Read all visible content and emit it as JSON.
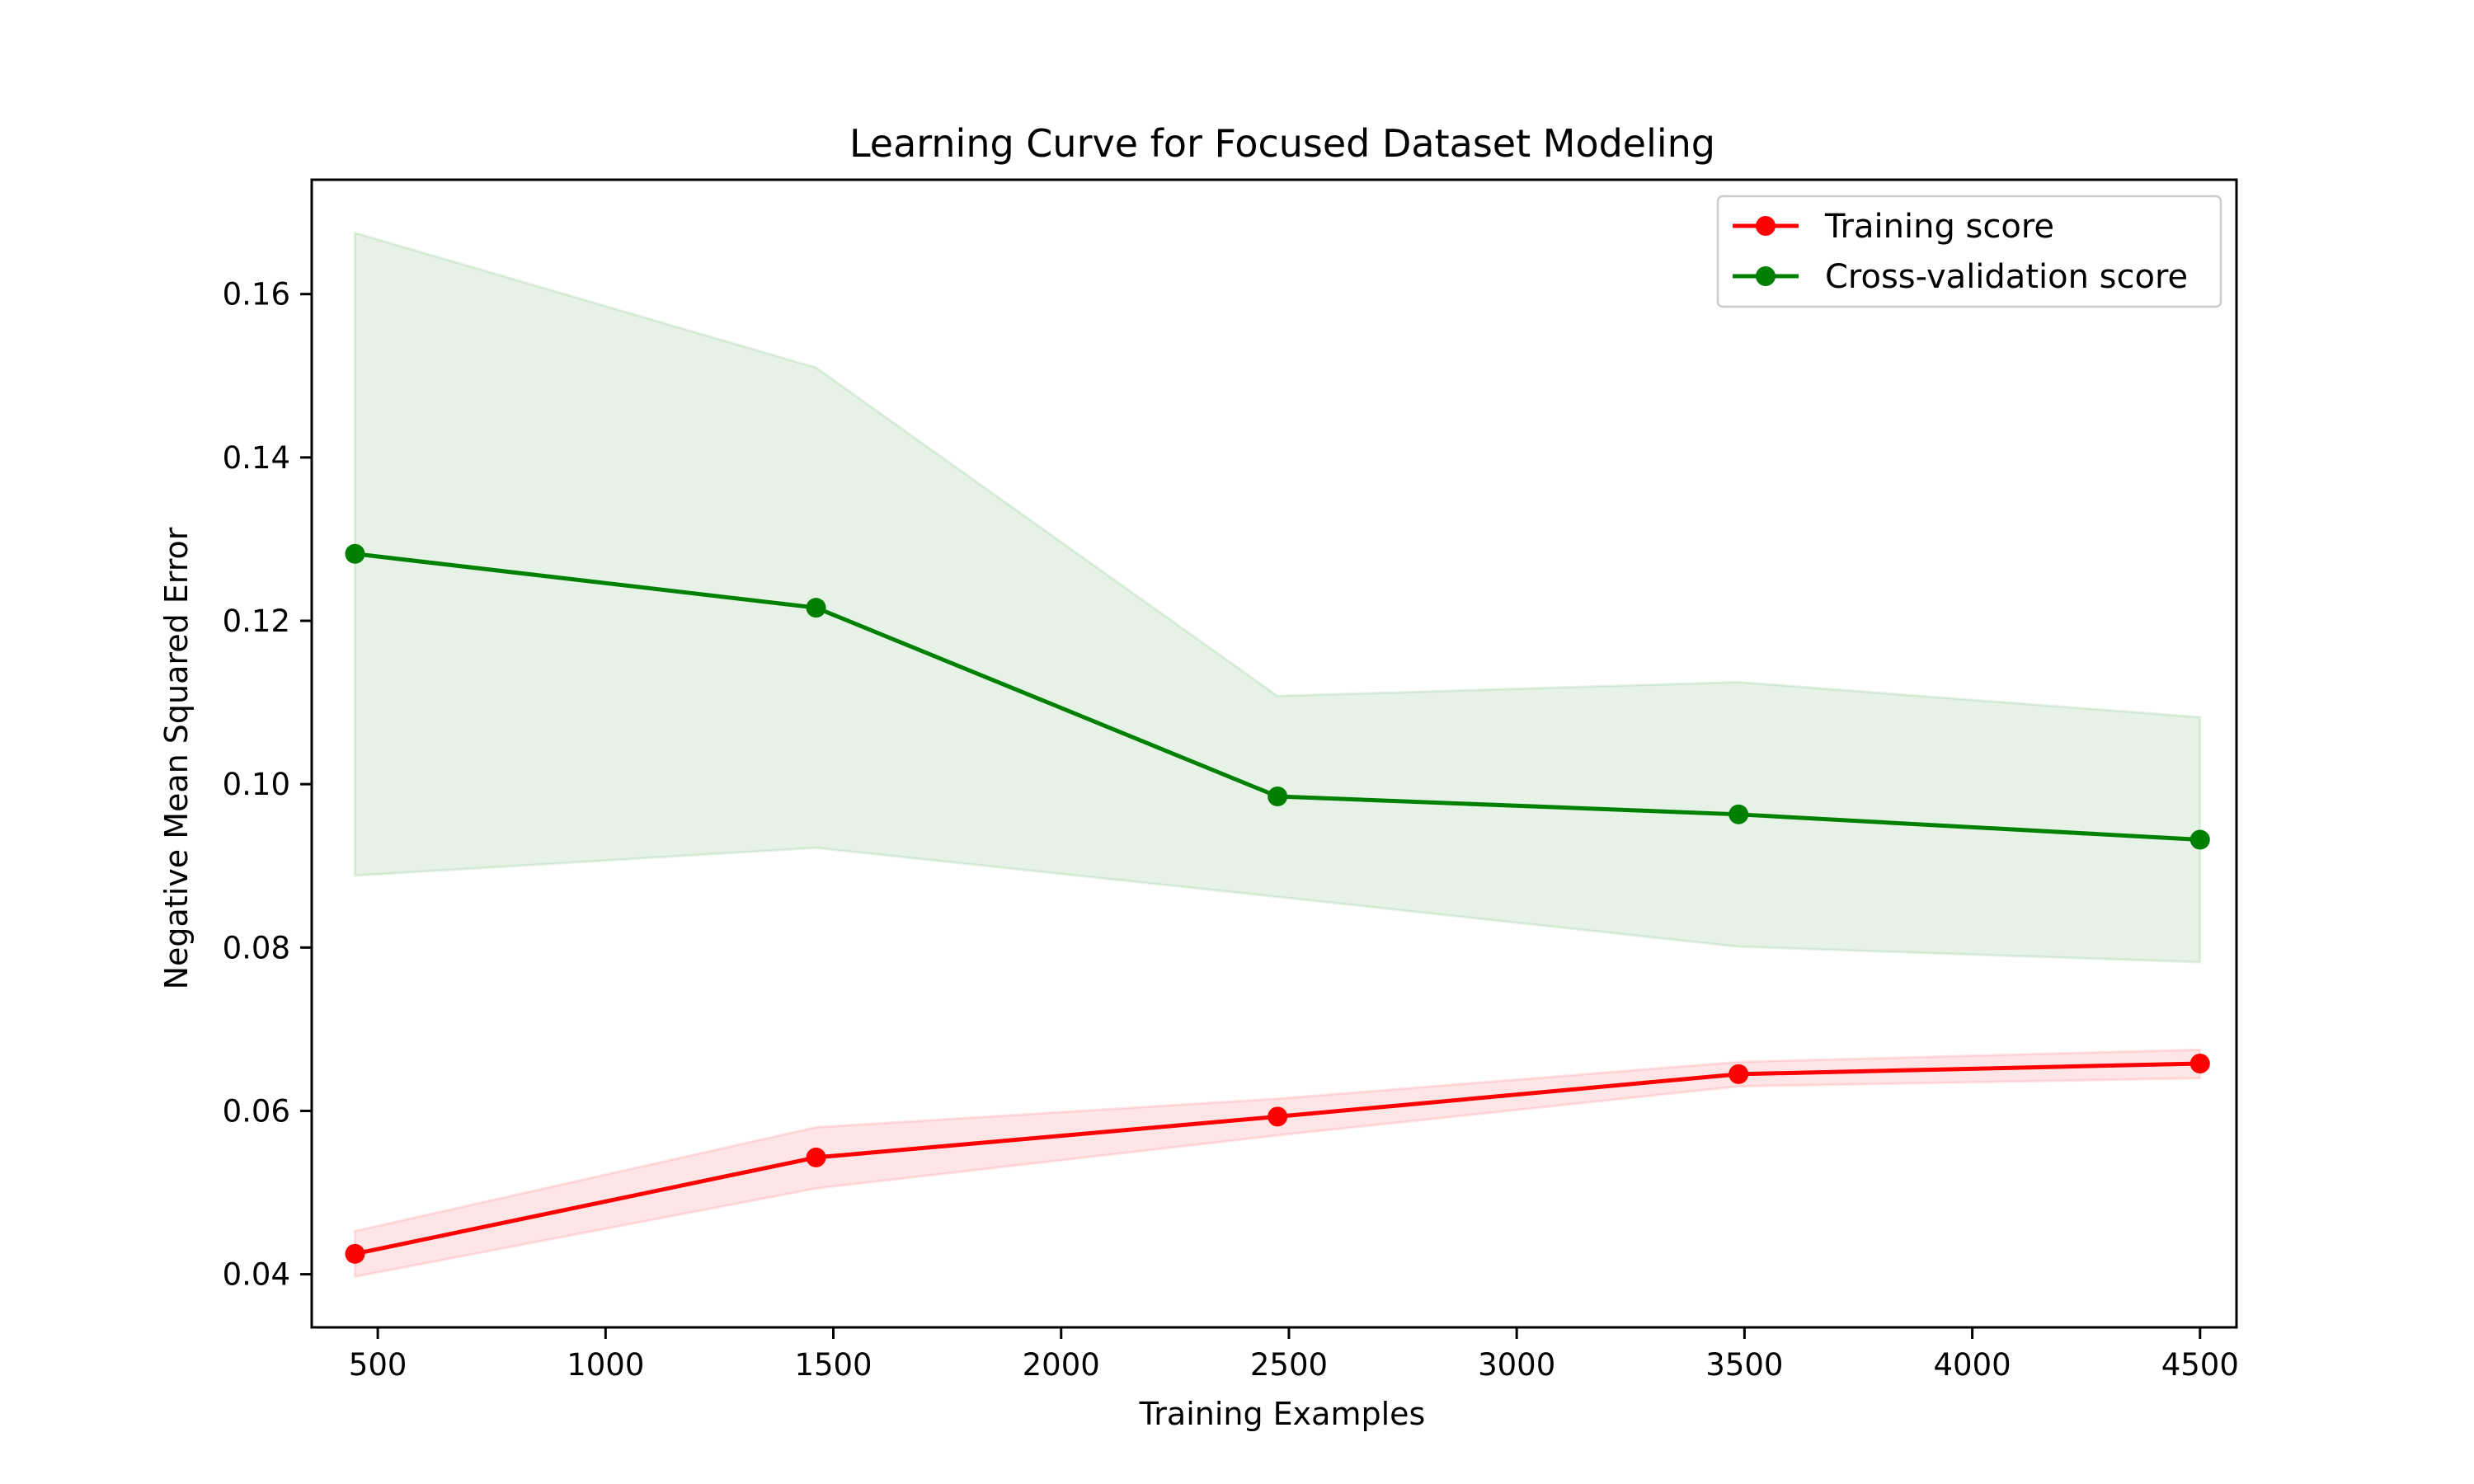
{
  "chart_data": {
    "type": "line",
    "title": "Learning Curve for Focused Dataset Modeling",
    "xlabel": "Training Examples",
    "ylabel": "Negative Mean Squared Error",
    "xlim": [
      355,
      4580
    ],
    "ylim": [
      0.0335,
      0.174
    ],
    "xticks": [
      500,
      1000,
      1500,
      2000,
      2500,
      3000,
      3500,
      4000,
      4500
    ],
    "xtick_labels": [
      "500",
      "1000",
      "1500",
      "2000",
      "2500",
      "3000",
      "3500",
      "4000",
      "4500"
    ],
    "yticks": [
      0.04,
      0.06,
      0.08,
      0.1,
      0.12,
      0.14,
      0.16
    ],
    "ytick_labels": [
      "0.04",
      "0.06",
      "0.08",
      "0.10",
      "0.12",
      "0.14",
      "0.16"
    ],
    "grid": false,
    "legend_position": "top-right",
    "x": [
      450,
      1462,
      2475,
      3487,
      4500
    ],
    "series": [
      {
        "name": "Training score",
        "color": "#ff0000",
        "band_color": "#ff0000",
        "values": [
          0.0425,
          0.0543,
          0.0593,
          0.0645,
          0.0658
        ],
        "band_upper": [
          0.0453,
          0.058,
          0.0615,
          0.066,
          0.0675
        ],
        "band_lower": [
          0.0397,
          0.0505,
          0.057,
          0.063,
          0.064
        ]
      },
      {
        "name": "Cross-validation score",
        "color": "#008000",
        "band_color": "#008000",
        "values": [
          0.1282,
          0.1216,
          0.0985,
          0.0963,
          0.0932
        ],
        "band_upper": [
          0.1675,
          0.151,
          0.1108,
          0.1125,
          0.1082
        ],
        "band_lower": [
          0.0888,
          0.0922,
          0.0862,
          0.0801,
          0.0782
        ]
      }
    ]
  }
}
